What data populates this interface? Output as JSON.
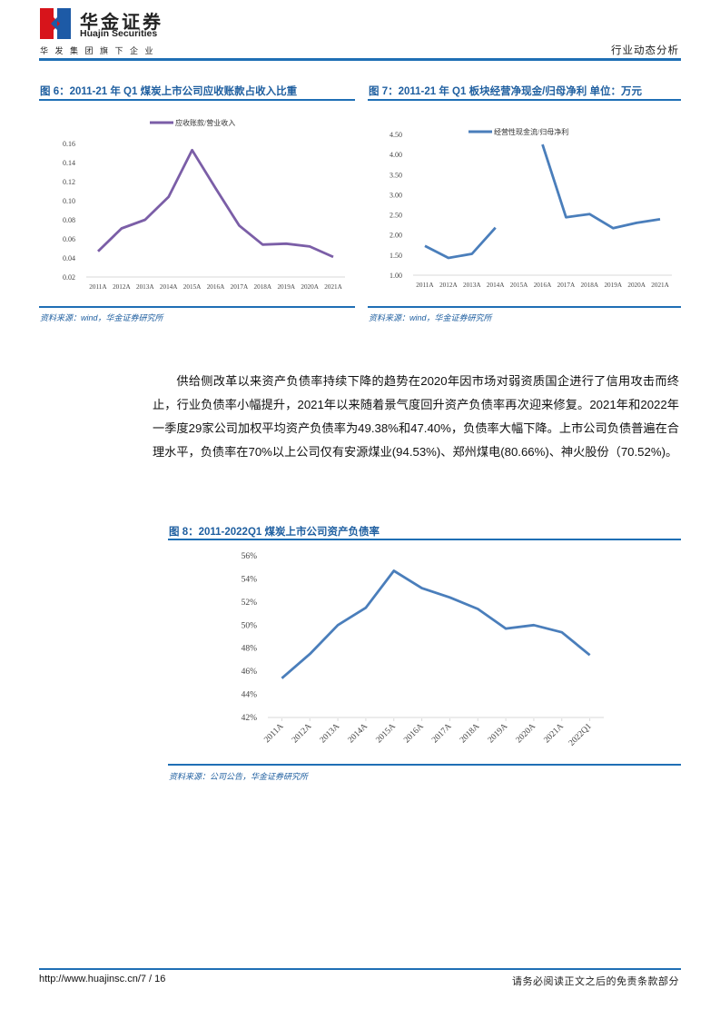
{
  "header": {
    "logo_cn": "华金证券",
    "logo_en": "Huajin Securities",
    "logo_sub": "华发集团旗下企业",
    "section": "行业动态分析",
    "colors": {
      "accent": "#1f6fb5",
      "logo_red": "#d7141b",
      "logo_blue": "#1d5aa6"
    }
  },
  "figures": {
    "fig6": {
      "title": "图 6：2011-21 年 Q1 煤炭上市公司应收账款占收入比重",
      "source": "资料来源：wind，华金证券研究所"
    },
    "fig7": {
      "title": "图 7：2011-21 年 Q1 板块经营净现金/归母净利  单位：万元",
      "source": "资料来源：wind，华金证券研究所"
    },
    "fig8": {
      "title": "图 8：2011-2022Q1 煤炭上市公司资产负债率",
      "source": "资料来源：公司公告，华金证券研究所"
    }
  },
  "body": {
    "paragraph": "供给侧改革以来资产负债率持续下降的趋势在2020年因市场对弱资质国企进行了信用攻击而终止，行业负债率小幅提升，2021年以来随着景气度回升资产负债率再次迎来修复。2021年和2022年一季度29家公司加权平均资产负债率为49.38%和47.40%，负债率大幅下降。上市公司负债普遍在合理水平，负债率在70%以上公司仅有安源煤业(94.53%)、郑州煤电(80.66%)、神火股份（70.52%)。"
  },
  "footer": {
    "url_page": "http://www.huajinsc.cn/7  /  16",
    "disclaimer": "请务必阅读正文之后的免责条款部分"
  },
  "chart_data": [
    {
      "type": "line",
      "title": "图 6：2011-21 年 Q1 煤炭上市公司应收账款占收入比重",
      "categories": [
        "2011A",
        "2012A",
        "2013A",
        "2014A",
        "2015A",
        "2016A",
        "2017A",
        "2018A",
        "2019A",
        "2020A",
        "2021A"
      ],
      "series": [
        {
          "name": "应收账款/营业收入",
          "color": "#7b5ea7",
          "values": [
            0.047,
            0.071,
            0.08,
            0.104,
            0.153,
            0.113,
            0.074,
            0.054,
            0.055,
            0.052,
            0.041
          ]
        }
      ],
      "yticks": [
        "0.02",
        "0.04",
        "0.06",
        "0.08",
        "0.10",
        "0.12",
        "0.14",
        "0.16"
      ],
      "ylim": [
        0.02,
        0.16
      ],
      "xlabel": "",
      "ylabel": "",
      "legend_position": "top",
      "grid": false
    },
    {
      "type": "line",
      "title": "图 7：2011-21 年 Q1 板块经营净现金/归母净利 单位：万元",
      "categories": [
        "2011A",
        "2012A",
        "2013A",
        "2014A",
        "2015A",
        "2016A",
        "2017A",
        "2018A",
        "2019A",
        "2020A",
        "2021A"
      ],
      "series": [
        {
          "name": "经营性现金流/归母净利",
          "color": "#4a7ebb",
          "values": [
            1.73,
            1.43,
            1.53,
            2.18,
            null,
            4.25,
            2.44,
            2.52,
            2.17,
            2.3,
            2.39
          ]
        }
      ],
      "yticks": [
        "1.00",
        "1.50",
        "2.00",
        "2.50",
        "3.00",
        "3.50",
        "4.00",
        "4.50"
      ],
      "ylim": [
        1.0,
        4.5
      ],
      "xlabel": "",
      "ylabel": "",
      "legend_position": "top",
      "grid": false
    },
    {
      "type": "line",
      "title": "图 8：2011-2022Q1 煤炭上市公司资产负债率",
      "categories": [
        "2011A",
        "2012A",
        "2013A",
        "2014A",
        "2015A",
        "2016A",
        "2017A",
        "2018A",
        "2019A",
        "2020A",
        "2021A",
        "2022Q1"
      ],
      "series": [
        {
          "name": "资产负债率",
          "color": "#4a7ebb",
          "values": [
            45.4,
            47.5,
            50.0,
            51.5,
            54.7,
            53.2,
            52.4,
            51.4,
            49.7,
            50.0,
            49.38,
            47.4
          ]
        }
      ],
      "yticks": [
        "42%",
        "44%",
        "46%",
        "48%",
        "50%",
        "52%",
        "54%",
        "56%"
      ],
      "ylim": [
        42,
        56
      ],
      "xlabel": "",
      "ylabel": "",
      "legend_position": "none",
      "grid": false
    }
  ]
}
